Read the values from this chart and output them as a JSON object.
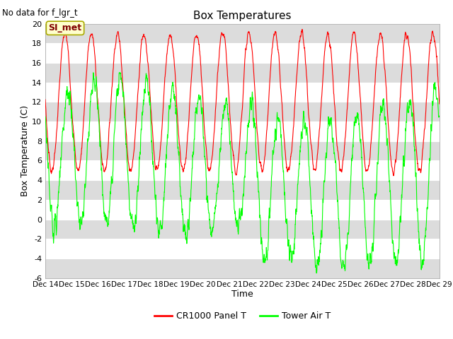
{
  "title": "Box Temperatures",
  "top_left_text": "No data for f_lgr_t",
  "box_label": "SI_met",
  "xlabel": "Time",
  "ylabel": "Box Temperature (C)",
  "ylim": [
    -6,
    20
  ],
  "yticks": [
    -6,
    -4,
    -2,
    0,
    2,
    4,
    6,
    8,
    10,
    12,
    14,
    16,
    18,
    20
  ],
  "xtick_labels": [
    "Dec 14",
    "Dec 15",
    "Dec 16",
    "Dec 17",
    "Dec 18",
    "Dec 19",
    "Dec 20",
    "Dec 21",
    "Dec 22",
    "Dec 23",
    "Dec 24",
    "Dec 25",
    "Dec 26",
    "Dec 27",
    "Dec 28",
    "Dec 29"
  ],
  "red_color": "#FF0000",
  "green_color": "#00FF00",
  "background_color": "#FFFFFF",
  "band_color": "#DCDCDC",
  "legend_labels": [
    "CR1000 Panel T",
    "Tower Air T"
  ],
  "n_days": 15,
  "samples_per_day": 144
}
